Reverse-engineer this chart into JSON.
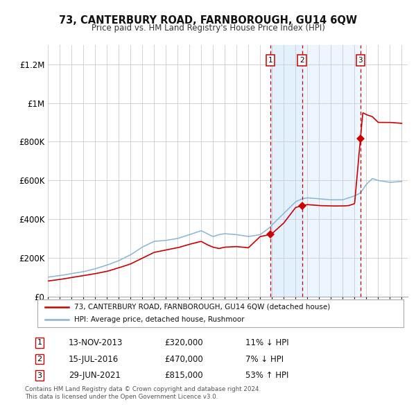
{
  "title": "73, CANTERBURY ROAD, FARNBOROUGH, GU14 6QW",
  "subtitle": "Price paid vs. HM Land Registry's House Price Index (HPI)",
  "ylim": [
    0,
    1300000
  ],
  "yticks": [
    0,
    200000,
    400000,
    600000,
    800000,
    1000000,
    1200000
  ],
  "ytick_labels": [
    "£0",
    "£200K",
    "£400K",
    "£600K",
    "£800K",
    "£1M",
    "£1.2M"
  ],
  "hpi_color": "#8ab4d4",
  "price_color": "#cc0000",
  "marker_color": "#cc0000",
  "bg_color": "#ffffff",
  "grid_color": "#cccccc",
  "shade_color": "#ddeeff",
  "transactions": [
    {
      "num": 1,
      "date": "13-NOV-2013",
      "price": 320000,
      "pct": "11%",
      "dir": "↓",
      "x_year": 2013.87
    },
    {
      "num": 2,
      "date": "15-JUL-2016",
      "price": 470000,
      "pct": "7%",
      "dir": "↓",
      "x_year": 2016.54
    },
    {
      "num": 3,
      "date": "29-JUN-2021",
      "price": 815000,
      "pct": "53%",
      "dir": "↑",
      "x_year": 2021.49
    }
  ],
  "legend_line1": "73, CANTERBURY ROAD, FARNBOROUGH, GU14 6QW (detached house)",
  "legend_line2": "HPI: Average price, detached house, Rushmoor",
  "footnote1": "Contains HM Land Registry data © Crown copyright and database right 2024.",
  "footnote2": "This data is licensed under the Open Government Licence v3.0.",
  "xmin": 1995,
  "xmax": 2025.5,
  "xticks": [
    1995,
    1996,
    1997,
    1998,
    1999,
    2000,
    2001,
    2002,
    2003,
    2004,
    2005,
    2006,
    2007,
    2008,
    2009,
    2010,
    2011,
    2012,
    2013,
    2014,
    2015,
    2016,
    2017,
    2018,
    2019,
    2020,
    2021,
    2022,
    2023,
    2024,
    2025
  ]
}
